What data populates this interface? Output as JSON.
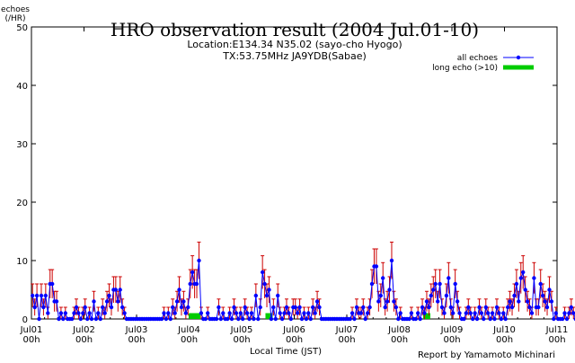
{
  "chart_data": {
    "type": "line",
    "title": "HRO observation result (2004 Jul.01-10)",
    "subtitle_lines": [
      "Location:E134.34 N35.02 (sayo-cho Hyogo)",
      "TX:53.75MHz JA9YDB(Sabae)"
    ],
    "ylabel": "echoes\n(/HR)",
    "xlabel": "Local Time (JST)",
    "credit": "Report by Yamamoto Michinari",
    "ylim": [
      0,
      50
    ],
    "y_ticks": [
      0,
      10,
      20,
      30,
      40,
      50
    ],
    "xlim_hours": [
      0,
      240
    ],
    "x_ticks": [
      {
        "label": "Jul01\n00h",
        "hour": 0
      },
      {
        "label": "Jul02\n00h",
        "hour": 24
      },
      {
        "label": "Jul03\n00h",
        "hour": 48
      },
      {
        "label": "Jul04\n00h",
        "hour": 72
      },
      {
        "label": "Jul05\n00h",
        "hour": 96
      },
      {
        "label": "Jul06\n00h",
        "hour": 120
      },
      {
        "label": "Jul07\n00h",
        "hour": 144
      },
      {
        "label": "Jul08\n00h",
        "hour": 168
      },
      {
        "label": "Jul09\n00h",
        "hour": 192
      },
      {
        "label": "Jul10\n00h",
        "hour": 216
      },
      {
        "label": "Jul11\n00h",
        "hour": 240
      }
    ],
    "legend": {
      "position": "top-right",
      "items": [
        {
          "name": "all echoes",
          "color": "#0000ff"
        },
        {
          "name": "long echo (>10)",
          "color": "#00cc00"
        }
      ]
    },
    "series": [
      {
        "name": "all echoes",
        "color": "#0000ff",
        "error_bar_color": "#cc0000",
        "values": [
          4,
          2,
          4,
          0,
          4,
          2,
          4,
          1,
          6,
          6,
          3,
          3,
          0,
          1,
          0,
          1,
          0,
          0,
          0,
          1,
          2,
          1,
          0,
          1,
          2,
          0,
          1,
          0,
          3,
          0,
          1,
          0,
          2,
          1,
          3,
          4,
          2,
          5,
          5,
          3,
          5,
          2,
          1,
          0,
          0,
          0,
          0,
          0,
          0,
          0,
          0,
          0,
          0,
          0,
          0,
          0,
          0,
          0,
          0,
          0,
          1,
          0,
          1,
          0,
          2,
          1,
          3,
          5,
          2,
          3,
          1,
          2,
          6,
          8,
          6,
          6,
          10,
          1,
          0,
          0,
          1,
          0,
          0,
          0,
          0,
          2,
          0,
          1,
          0,
          0,
          1,
          0,
          2,
          1,
          0,
          1,
          0,
          2,
          1,
          0,
          1,
          0,
          4,
          0,
          2,
          8,
          6,
          4,
          5,
          0,
          2,
          0,
          4,
          1,
          0,
          1,
          2,
          1,
          0,
          2,
          2,
          1,
          2,
          0,
          1,
          0,
          1,
          0,
          2,
          1,
          3,
          2,
          0,
          0,
          0,
          0,
          0,
          0,
          0,
          0,
          0,
          0,
          0,
          0,
          0,
          0,
          1,
          0,
          2,
          1,
          1,
          2,
          0,
          1,
          2,
          6,
          9,
          9,
          3,
          4,
          7,
          2,
          3,
          5,
          10,
          3,
          2,
          0,
          1,
          0,
          0,
          0,
          0,
          1,
          0,
          0,
          1,
          0,
          2,
          1,
          3,
          2,
          4,
          5,
          6,
          3,
          6,
          2,
          1,
          4,
          7,
          2,
          1,
          6,
          3,
          1,
          0,
          0,
          1,
          2,
          1,
          0,
          1,
          0,
          2,
          1,
          0,
          2,
          1,
          0,
          1,
          0,
          2,
          1,
          0,
          1,
          0,
          2,
          3,
          2,
          4,
          6,
          3,
          7,
          8,
          5,
          3,
          2,
          1,
          7,
          2,
          2,
          6,
          4,
          3,
          2,
          5,
          3,
          0,
          1,
          0,
          0,
          0,
          1,
          0,
          1,
          2,
          1,
          0,
          0,
          1
        ]
      },
      {
        "name": "long echo (>10)",
        "color": "#00cc00",
        "values": [
          0,
          0,
          0,
          0,
          0,
          0,
          0,
          0,
          0,
          0,
          0,
          0,
          0,
          0,
          0,
          0,
          0,
          0,
          0,
          0,
          0,
          0,
          0,
          0,
          0,
          0,
          0,
          0,
          0,
          0,
          0,
          0,
          0,
          0,
          0,
          0,
          0,
          0,
          0,
          0,
          0,
          0,
          0,
          0,
          0,
          0,
          0,
          0,
          0,
          0,
          0,
          0,
          0,
          0,
          0,
          0,
          0,
          0,
          0,
          0,
          0,
          0,
          0,
          0,
          0,
          0,
          0,
          0,
          0,
          0,
          0,
          0,
          0,
          1,
          1,
          1,
          0,
          0,
          0,
          0,
          0,
          0,
          0,
          0,
          0,
          0,
          0,
          0,
          0,
          0,
          0,
          0,
          0,
          0,
          0,
          0,
          0,
          0,
          0,
          0,
          0,
          0,
          0,
          0,
          0,
          0,
          0,
          0,
          1,
          0,
          0,
          0,
          0,
          0,
          0,
          0,
          0,
          0,
          0,
          0,
          0,
          0,
          0,
          0,
          0,
          0,
          0,
          0,
          0,
          0,
          0,
          0,
          0,
          0,
          0,
          0,
          0,
          0,
          0,
          0,
          0,
          0,
          0,
          0,
          0,
          0,
          0,
          0,
          0,
          0,
          0,
          0,
          0,
          0,
          0,
          0,
          0,
          0,
          0,
          0,
          0,
          0,
          0,
          0,
          0,
          0,
          0,
          0,
          0,
          0,
          0,
          0,
          0,
          0,
          0,
          0,
          0,
          0,
          0,
          0,
          1,
          0,
          0,
          0,
          0,
          0,
          0,
          0,
          0,
          0,
          0,
          0,
          0,
          0,
          0,
          0,
          0,
          0,
          0,
          0,
          0,
          0,
          0,
          0,
          0,
          0,
          0,
          0,
          0,
          0,
          0,
          0,
          0,
          0,
          0,
          0,
          0,
          0,
          0,
          0,
          0,
          0,
          0,
          0,
          0,
          0,
          0,
          0,
          0,
          0,
          0,
          0,
          0,
          0,
          0,
          0,
          0,
          0,
          0,
          0,
          0,
          0,
          0,
          0,
          0,
          0,
          0,
          0,
          0,
          0,
          0,
          0,
          0,
          0,
          0,
          0,
          0
        ]
      }
    ]
  }
}
